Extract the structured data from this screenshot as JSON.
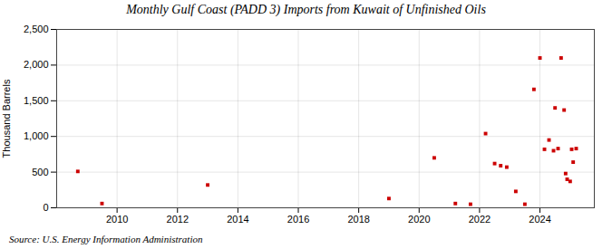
{
  "chart_data": {
    "type": "scatter",
    "title": "Monthly Gulf Coast (PADD 3) Imports from Kuwait of Unfinished Oils",
    "ylabel": "Thousand Barrels",
    "annotations": [
      "Source: U.S. Energy Information Administration"
    ],
    "color": "#cc0000",
    "marker": "square",
    "grid": true,
    "xlim": [
      2008.0,
      2025.8
    ],
    "ylim": [
      0,
      2500
    ],
    "xticks": [
      2010,
      2012,
      2014,
      2016,
      2018,
      2020,
      2022,
      2024
    ],
    "yticks": [
      0,
      500,
      {
        "value": 1000,
        "label": "1,000"
      },
      {
        "value": 1500,
        "label": "1,500"
      },
      {
        "value": 2000,
        "label": "2,000"
      },
      {
        "value": 2500,
        "label": "2,500"
      }
    ],
    "x": [
      2008.7,
      2009.5,
      2013.0,
      2019.0,
      2020.5,
      2021.2,
      2021.7,
      2022.2,
      2022.5,
      2022.7,
      2022.9,
      2023.2,
      2023.5,
      2023.8,
      2024.0,
      2024.15,
      2024.3,
      2024.45,
      2024.5,
      2024.6,
      2024.7,
      2024.8,
      2024.85,
      2024.9,
      2025.0,
      2025.05,
      2025.1,
      2025.2
    ],
    "values": [
      510,
      60,
      320,
      130,
      700,
      60,
      50,
      1040,
      620,
      590,
      570,
      230,
      50,
      1660,
      2100,
      820,
      950,
      800,
      1400,
      830,
      2100,
      1370,
      480,
      400,
      370,
      820,
      640,
      830
    ]
  }
}
